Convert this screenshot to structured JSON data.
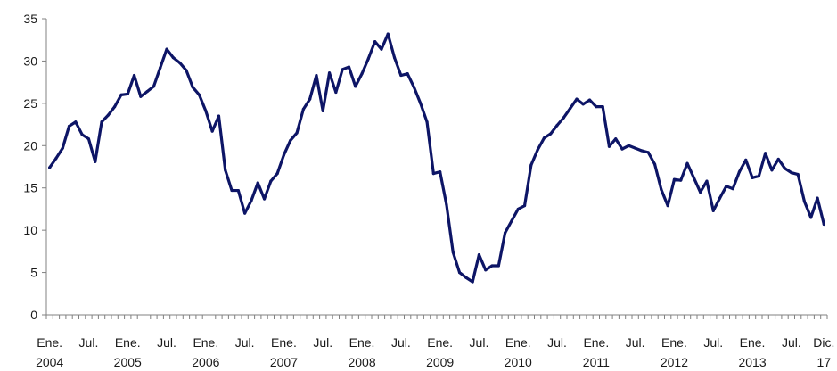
{
  "chart_data": {
    "type": "line",
    "title": "",
    "xlabel": "",
    "ylabel": "",
    "ylim": [
      0,
      35
    ],
    "y_ticks": [
      0,
      5,
      10,
      15,
      20,
      25,
      30,
      35
    ],
    "grid": false,
    "legend": "none",
    "line_color": "#0d1566",
    "x_tick_labels": [
      {
        "index": 0,
        "lines": [
          "Ene.",
          "2004"
        ]
      },
      {
        "index": 6,
        "lines": [
          "Jul.",
          ""
        ]
      },
      {
        "index": 12,
        "lines": [
          "Ene.",
          "2005"
        ]
      },
      {
        "index": 18,
        "lines": [
          "Jul.",
          ""
        ]
      },
      {
        "index": 24,
        "lines": [
          "Ene.",
          "2006"
        ]
      },
      {
        "index": 30,
        "lines": [
          "Jul.",
          ""
        ]
      },
      {
        "index": 36,
        "lines": [
          "Ene.",
          "2007"
        ]
      },
      {
        "index": 42,
        "lines": [
          "Jul.",
          ""
        ]
      },
      {
        "index": 48,
        "lines": [
          "Ene.",
          "2008"
        ]
      },
      {
        "index": 54,
        "lines": [
          "Jul.",
          ""
        ]
      },
      {
        "index": 60,
        "lines": [
          "Ene.",
          "2009"
        ]
      },
      {
        "index": 66,
        "lines": [
          "Jul.",
          ""
        ]
      },
      {
        "index": 72,
        "lines": [
          "Ene.",
          "2010"
        ]
      },
      {
        "index": 78,
        "lines": [
          "Jul.",
          ""
        ]
      },
      {
        "index": 84,
        "lines": [
          "Ene.",
          "2011"
        ]
      },
      {
        "index": 90,
        "lines": [
          "Jul.",
          ""
        ]
      },
      {
        "index": 96,
        "lines": [
          "Ene.",
          "2012"
        ]
      },
      {
        "index": 102,
        "lines": [
          "Jul.",
          ""
        ]
      },
      {
        "index": 108,
        "lines": [
          "Ene.",
          "2013"
        ]
      },
      {
        "index": 114,
        "lines": [
          "Jul.",
          ""
        ]
      },
      {
        "index": 119,
        "lines": [
          "Dic.",
          "17"
        ]
      }
    ],
    "series": [
      {
        "values": [
          17.4,
          18.5,
          19.7,
          22.3,
          22.8,
          21.3,
          20.8,
          18.1,
          22.8,
          23.6,
          24.6,
          26.0,
          26.1,
          28.3,
          25.8,
          26.4,
          27.0,
          29.2,
          31.4,
          30.4,
          29.8,
          28.9,
          26.9,
          26.0,
          24.1,
          21.7,
          23.5,
          17.1,
          14.7,
          14.7,
          12.0,
          13.5,
          15.6,
          13.7,
          15.8,
          16.7,
          18.9,
          20.6,
          21.5,
          24.3,
          25.5,
          28.3,
          24.1,
          28.6,
          26.3,
          29.0,
          29.3,
          27.0,
          28.5,
          30.3,
          32.3,
          31.4,
          33.2,
          30.4,
          28.3,
          28.5,
          26.9,
          25.0,
          22.8,
          16.7,
          16.9,
          13.0,
          7.4,
          5.0,
          4.4,
          3.9,
          7.1,
          5.3,
          5.8,
          5.8,
          9.7,
          11.1,
          12.5,
          12.9,
          17.7,
          19.5,
          20.9,
          21.4,
          22.4,
          23.3,
          24.4,
          25.5,
          24.9,
          25.4,
          24.6,
          24.6,
          19.9,
          20.8,
          19.6,
          20.0,
          19.7,
          19.4,
          19.2,
          17.8,
          14.8,
          12.9,
          16.0,
          15.9,
          17.9,
          16.2,
          14.5,
          15.8,
          12.3,
          13.8,
          15.2,
          14.9,
          16.9,
          18.3,
          16.2,
          16.4,
          19.1,
          17.1,
          18.4,
          17.3,
          16.8,
          16.6,
          13.4,
          11.5,
          13.8,
          10.7
        ]
      }
    ]
  }
}
